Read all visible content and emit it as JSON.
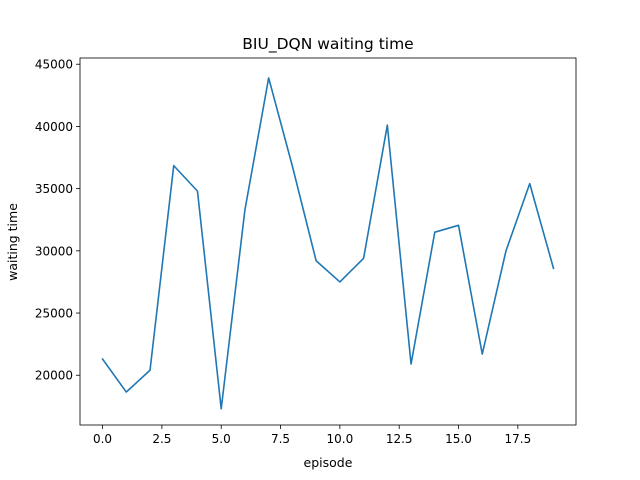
{
  "chart_data": {
    "type": "line",
    "title": "BIU_DQN waiting time",
    "xlabel": "episode",
    "ylabel": "waiting time",
    "x": [
      0,
      1,
      2,
      3,
      4,
      5,
      6,
      7,
      8,
      9,
      10,
      11,
      12,
      13,
      14,
      15,
      16,
      17,
      18,
      19
    ],
    "series": [
      {
        "values": [
          21300,
          18650,
          20400,
          36850,
          34800,
          17300,
          33300,
          43900,
          36800,
          29200,
          27500,
          29400,
          40100,
          20900,
          31500,
          32050,
          21700,
          30000,
          35400,
          28600
        ],
        "color": "#1f77b4"
      }
    ],
    "xlim": [
      -0.95,
      19.95
    ],
    "ylim": [
      16000,
      45500
    ],
    "xticks": [
      0.0,
      2.5,
      5.0,
      7.5,
      10.0,
      12.5,
      15.0,
      17.5
    ],
    "xtick_labels": [
      "0.0",
      "2.5",
      "5.0",
      "7.5",
      "10.0",
      "12.5",
      "15.0",
      "17.5"
    ],
    "yticks": [
      20000,
      25000,
      30000,
      35000,
      40000,
      45000
    ],
    "ytick_labels": [
      "20000",
      "25000",
      "30000",
      "35000",
      "40000",
      "45000"
    ],
    "grid": false,
    "legend": "none"
  }
}
